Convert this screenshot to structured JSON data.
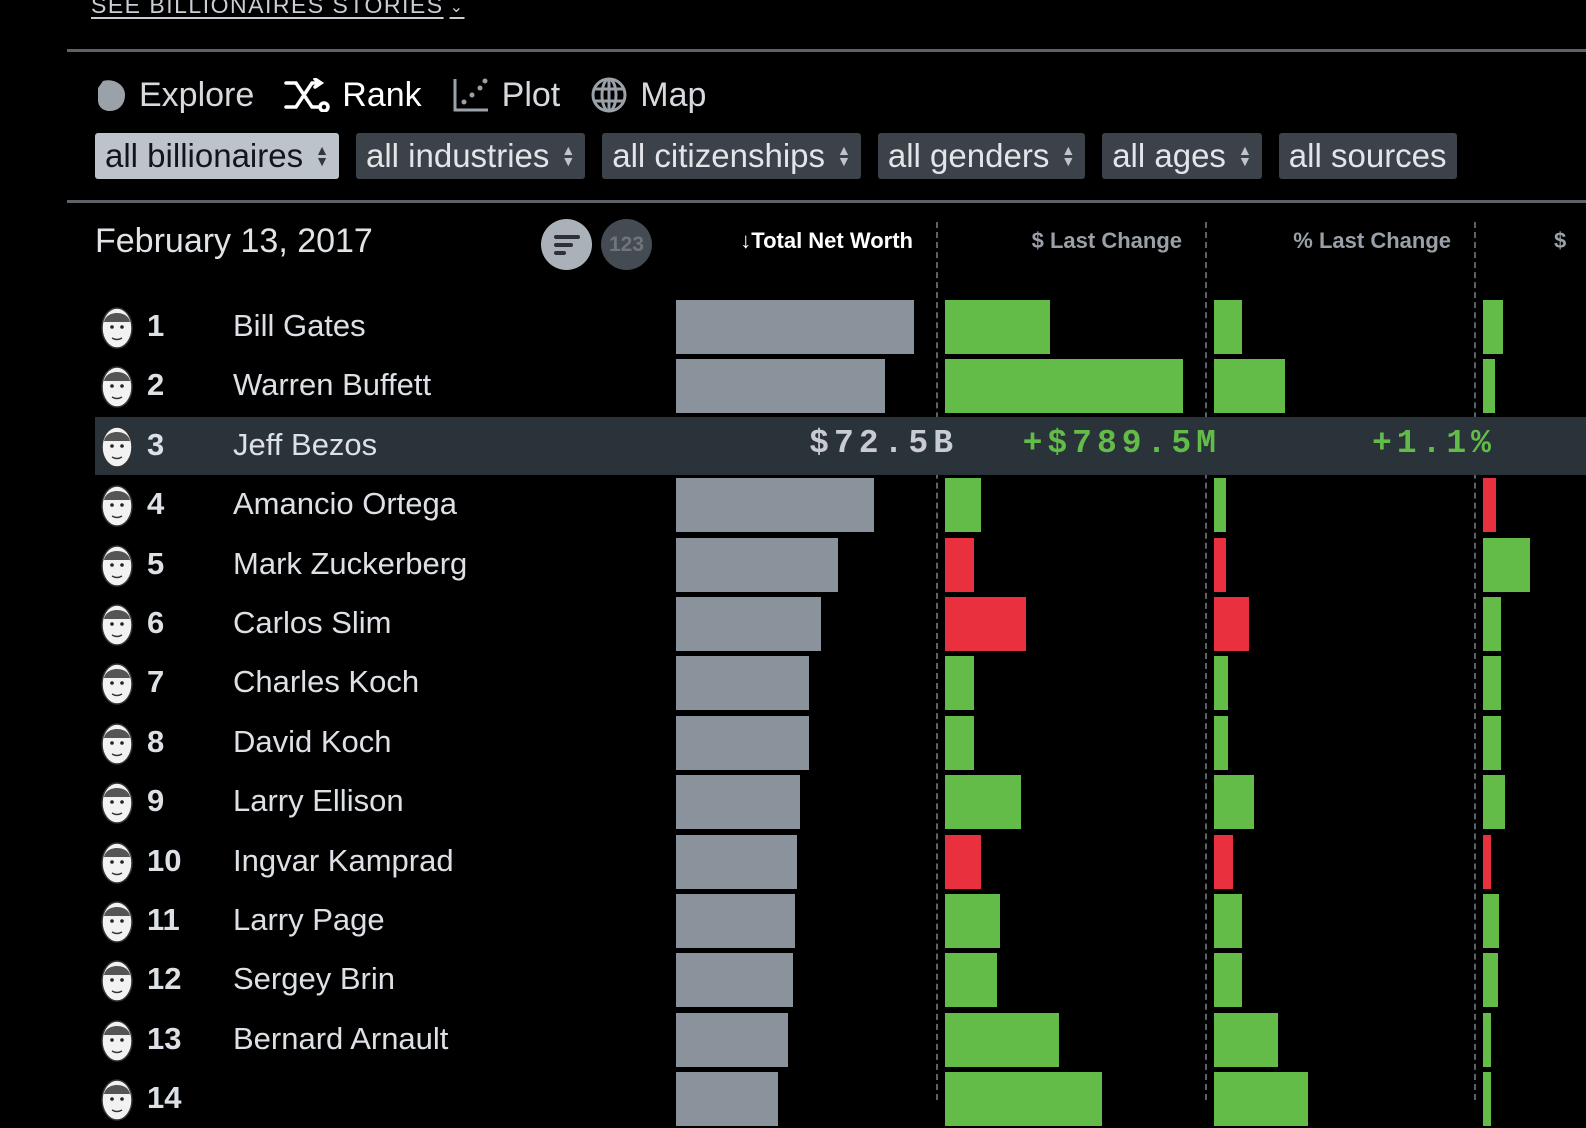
{
  "top_link": "SEE BILLIONAIRES STORIES",
  "nav": [
    {
      "label": "Explore",
      "icon": "explore-icon",
      "active": false
    },
    {
      "label": "Rank",
      "icon": "rank-shuffle-icon",
      "active": true
    },
    {
      "label": "Plot",
      "icon": "plot-icon",
      "active": false
    },
    {
      "label": "Map",
      "icon": "globe-icon",
      "active": false
    }
  ],
  "filters": [
    "all billionaires",
    "all industries",
    "all citizenships",
    "all genders",
    "all ages",
    "all sources"
  ],
  "date": "February 13, 2017",
  "view_toggles": {
    "sort_icon": "sort-bars-icon",
    "number_label": "123"
  },
  "columns": [
    "↓Total Net Worth",
    "$ Last Change",
    "% Last Change",
    "$"
  ],
  "colors": {
    "positive": "#62bc47",
    "negative": "#e8303f",
    "net_worth": "#8a929b",
    "highlight": "#2a323a"
  },
  "highlight": {
    "net_worth": "$72.5B",
    "dollar_change": "+$789.5M",
    "pct_change": "+1.1%"
  },
  "rows": [
    {
      "rank": "1",
      "name": "Bill Gates",
      "nw": 1.0,
      "dc": 0.44,
      "pc": 0.12,
      "c4": 0.19
    },
    {
      "rank": "2",
      "name": "Warren Buffett",
      "nw": 0.88,
      "dc": 1.0,
      "pc": 0.3,
      "c4": 0.12
    },
    {
      "rank": "3",
      "name": "Jeff Bezos",
      "nw": 0.84,
      "dc": 0.0,
      "pc": 0.0,
      "c4": 0.0,
      "highlighted": true
    },
    {
      "rank": "4",
      "name": "Amancio Ortega",
      "nw": 0.83,
      "dc": 0.15,
      "pc": 0.05,
      "c4": -0.13
    },
    {
      "rank": "5",
      "name": "Mark Zuckerberg",
      "nw": 0.68,
      "dc": -0.12,
      "pc": -0.05,
      "c4": 0.46
    },
    {
      "rank": "6",
      "name": "Carlos Slim",
      "nw": 0.61,
      "dc": -0.34,
      "pc": -0.15,
      "c4": 0.17
    },
    {
      "rank": "7",
      "name": "Charles Koch",
      "nw": 0.56,
      "dc": 0.12,
      "pc": 0.06,
      "c4": 0.17
    },
    {
      "rank": "8",
      "name": "David Koch",
      "nw": 0.56,
      "dc": 0.12,
      "pc": 0.06,
      "c4": 0.17
    },
    {
      "rank": "9",
      "name": "Larry Ellison",
      "nw": 0.52,
      "dc": 0.32,
      "pc": 0.17,
      "c4": 0.21
    },
    {
      "rank": "10",
      "name": "Ingvar Kamprad",
      "nw": 0.51,
      "dc": -0.15,
      "pc": -0.08,
      "c4": -0.08
    },
    {
      "rank": "11",
      "name": "Larry Page",
      "nw": 0.5,
      "dc": 0.23,
      "pc": 0.12,
      "c4": 0.16
    },
    {
      "rank": "12",
      "name": "Sergey Brin",
      "nw": 0.49,
      "dc": 0.22,
      "pc": 0.12,
      "c4": 0.15
    },
    {
      "rank": "13",
      "name": "Bernard Arnault",
      "nw": 0.47,
      "dc": 0.48,
      "pc": 0.27,
      "c4": 0.06
    },
    {
      "rank": "14",
      "name": "",
      "nw": 0.43,
      "dc": 0.66,
      "pc": 0.4,
      "c4": 0.02
    }
  ]
}
